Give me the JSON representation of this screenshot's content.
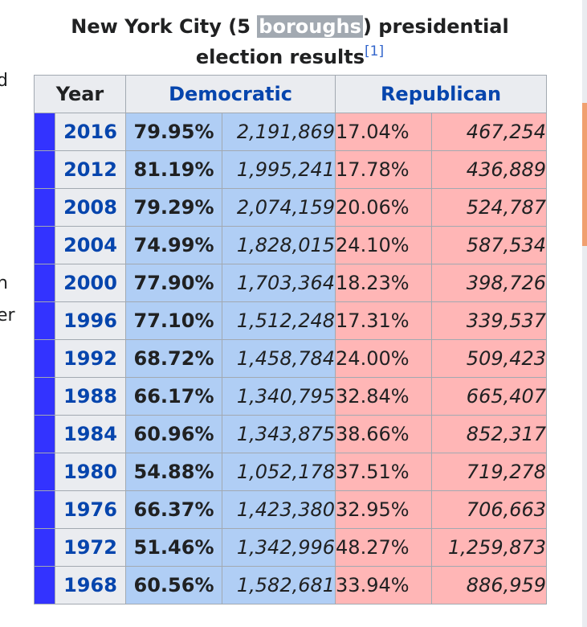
{
  "caption": {
    "before": "New York City (5 ",
    "highlight": "boroughs",
    "after": ") presidential election results",
    "ref": "[1]"
  },
  "edge_fragments": [
    "d",
    "n",
    "er"
  ],
  "table": {
    "headers": {
      "year": "Year",
      "democratic": "Democratic",
      "republican": "Republican"
    },
    "colors": {
      "winner_strip": "#3333ff",
      "democratic_bg": "#b0cef5",
      "republican_bg": "#ffb6b6",
      "link": "#0645ad"
    },
    "rows": [
      {
        "year": "2016",
        "dem_pct": "79.95%",
        "dem_votes": "2,191,869",
        "rep_pct": "17.04%",
        "rep_votes": "467,254"
      },
      {
        "year": "2012",
        "dem_pct": "81.19%",
        "dem_votes": "1,995,241",
        "rep_pct": "17.78%",
        "rep_votes": "436,889"
      },
      {
        "year": "2008",
        "dem_pct": "79.29%",
        "dem_votes": "2,074,159",
        "rep_pct": "20.06%",
        "rep_votes": "524,787"
      },
      {
        "year": "2004",
        "dem_pct": "74.99%",
        "dem_votes": "1,828,015",
        "rep_pct": "24.10%",
        "rep_votes": "587,534"
      },
      {
        "year": "2000",
        "dem_pct": "77.90%",
        "dem_votes": "1,703,364",
        "rep_pct": "18.23%",
        "rep_votes": "398,726"
      },
      {
        "year": "1996",
        "dem_pct": "77.10%",
        "dem_votes": "1,512,248",
        "rep_pct": "17.31%",
        "rep_votes": "339,537"
      },
      {
        "year": "1992",
        "dem_pct": "68.72%",
        "dem_votes": "1,458,784",
        "rep_pct": "24.00%",
        "rep_votes": "509,423"
      },
      {
        "year": "1988",
        "dem_pct": "66.17%",
        "dem_votes": "1,340,795",
        "rep_pct": "32.84%",
        "rep_votes": "665,407"
      },
      {
        "year": "1984",
        "dem_pct": "60.96%",
        "dem_votes": "1,343,875",
        "rep_pct": "38.66%",
        "rep_votes": "852,317"
      },
      {
        "year": "1980",
        "dem_pct": "54.88%",
        "dem_votes": "1,052,178",
        "rep_pct": "37.51%",
        "rep_votes": "719,278"
      },
      {
        "year": "1976",
        "dem_pct": "66.37%",
        "dem_votes": "1,423,380",
        "rep_pct": "32.95%",
        "rep_votes": "706,663"
      },
      {
        "year": "1972",
        "dem_pct": "51.46%",
        "dem_votes": "1,342,996",
        "rep_pct": "48.27%",
        "rep_votes": "1,259,873"
      },
      {
        "year": "1968",
        "dem_pct": "60.56%",
        "dem_votes": "1,582,681",
        "rep_pct": "33.94%",
        "rep_votes": "886,959"
      }
    ]
  }
}
